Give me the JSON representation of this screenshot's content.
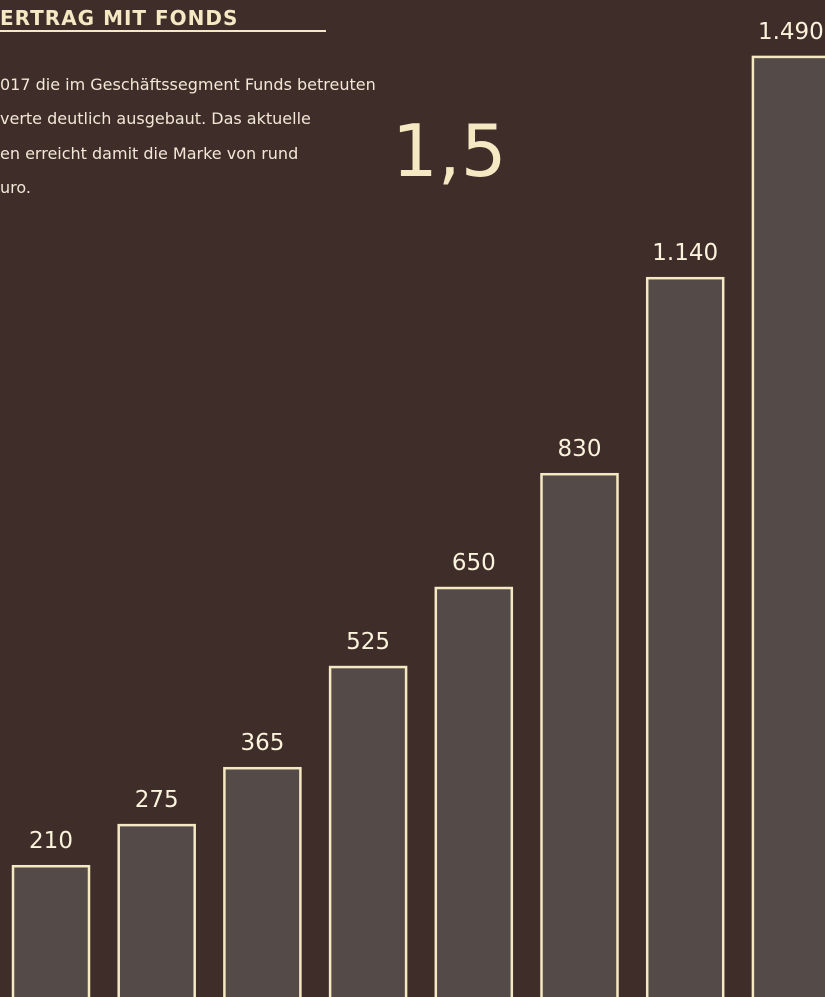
{
  "chart_data": {
    "type": "bar",
    "title": "ERTRAG MIT FONDS",
    "text_lines": [
      "017 die im Geschäftssegment Funds betreuten",
      "verte deutlich ausgebaut. Das aktuelle",
      "en erreicht damit die Marke von rund",
      "uro."
    ],
    "annotation": "1,5",
    "categories": [
      null,
      null,
      null,
      null,
      null,
      null,
      null,
      null
    ],
    "values": [
      210,
      275,
      365,
      525,
      650,
      830,
      1140,
      1490
    ],
    "value_labels": [
      "210",
      "275",
      "365",
      "525",
      "650",
      "830",
      "1.140",
      "1.490"
    ],
    "color": "#544a48",
    "edge_color": "#f5e9c4",
    "ylim": [
      0,
      1580
    ]
  }
}
